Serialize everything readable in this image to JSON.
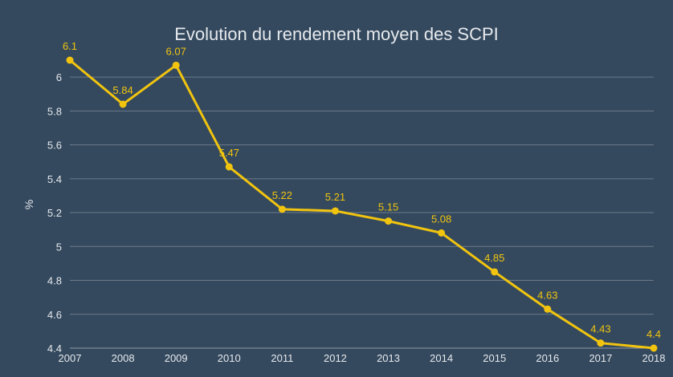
{
  "chart_data": {
    "type": "line",
    "title": "Evolution du rendement moyen des SCPI",
    "xlabel": "",
    "ylabel": "%",
    "categories": [
      "2007",
      "2008",
      "2009",
      "2010",
      "2011",
      "2012",
      "2013",
      "2014",
      "2015",
      "2016",
      "2017",
      "2018"
    ],
    "series": [
      {
        "values": [
          6.1,
          5.84,
          6.07,
          5.47,
          5.22,
          5.21,
          5.15,
          5.08,
          4.85,
          4.63,
          4.43,
          4.4
        ],
        "value_labels": [
          "6.1",
          "5.84",
          "6.07",
          "5.47",
          "5.22",
          "5.21",
          "5.15",
          "5.08",
          "4.85",
          "4.63",
          "4.43",
          "4.4"
        ]
      }
    ],
    "y_ticks": [
      4.4,
      4.6,
      4.8,
      5,
      5.2,
      5.4,
      5.6,
      5.8,
      6
    ],
    "y_tick_labels": [
      "4.4",
      "4.6",
      "4.8",
      "5",
      "5.2",
      "5.4",
      "5.6",
      "5.8",
      "6"
    ],
    "ylim": [
      4.4,
      6.1
    ],
    "grid": true,
    "legend": "none",
    "colors": {
      "background": "#34495e",
      "series": "#f1c40f",
      "text": "#e6e9ed",
      "grid": "#6c7a89"
    }
  }
}
